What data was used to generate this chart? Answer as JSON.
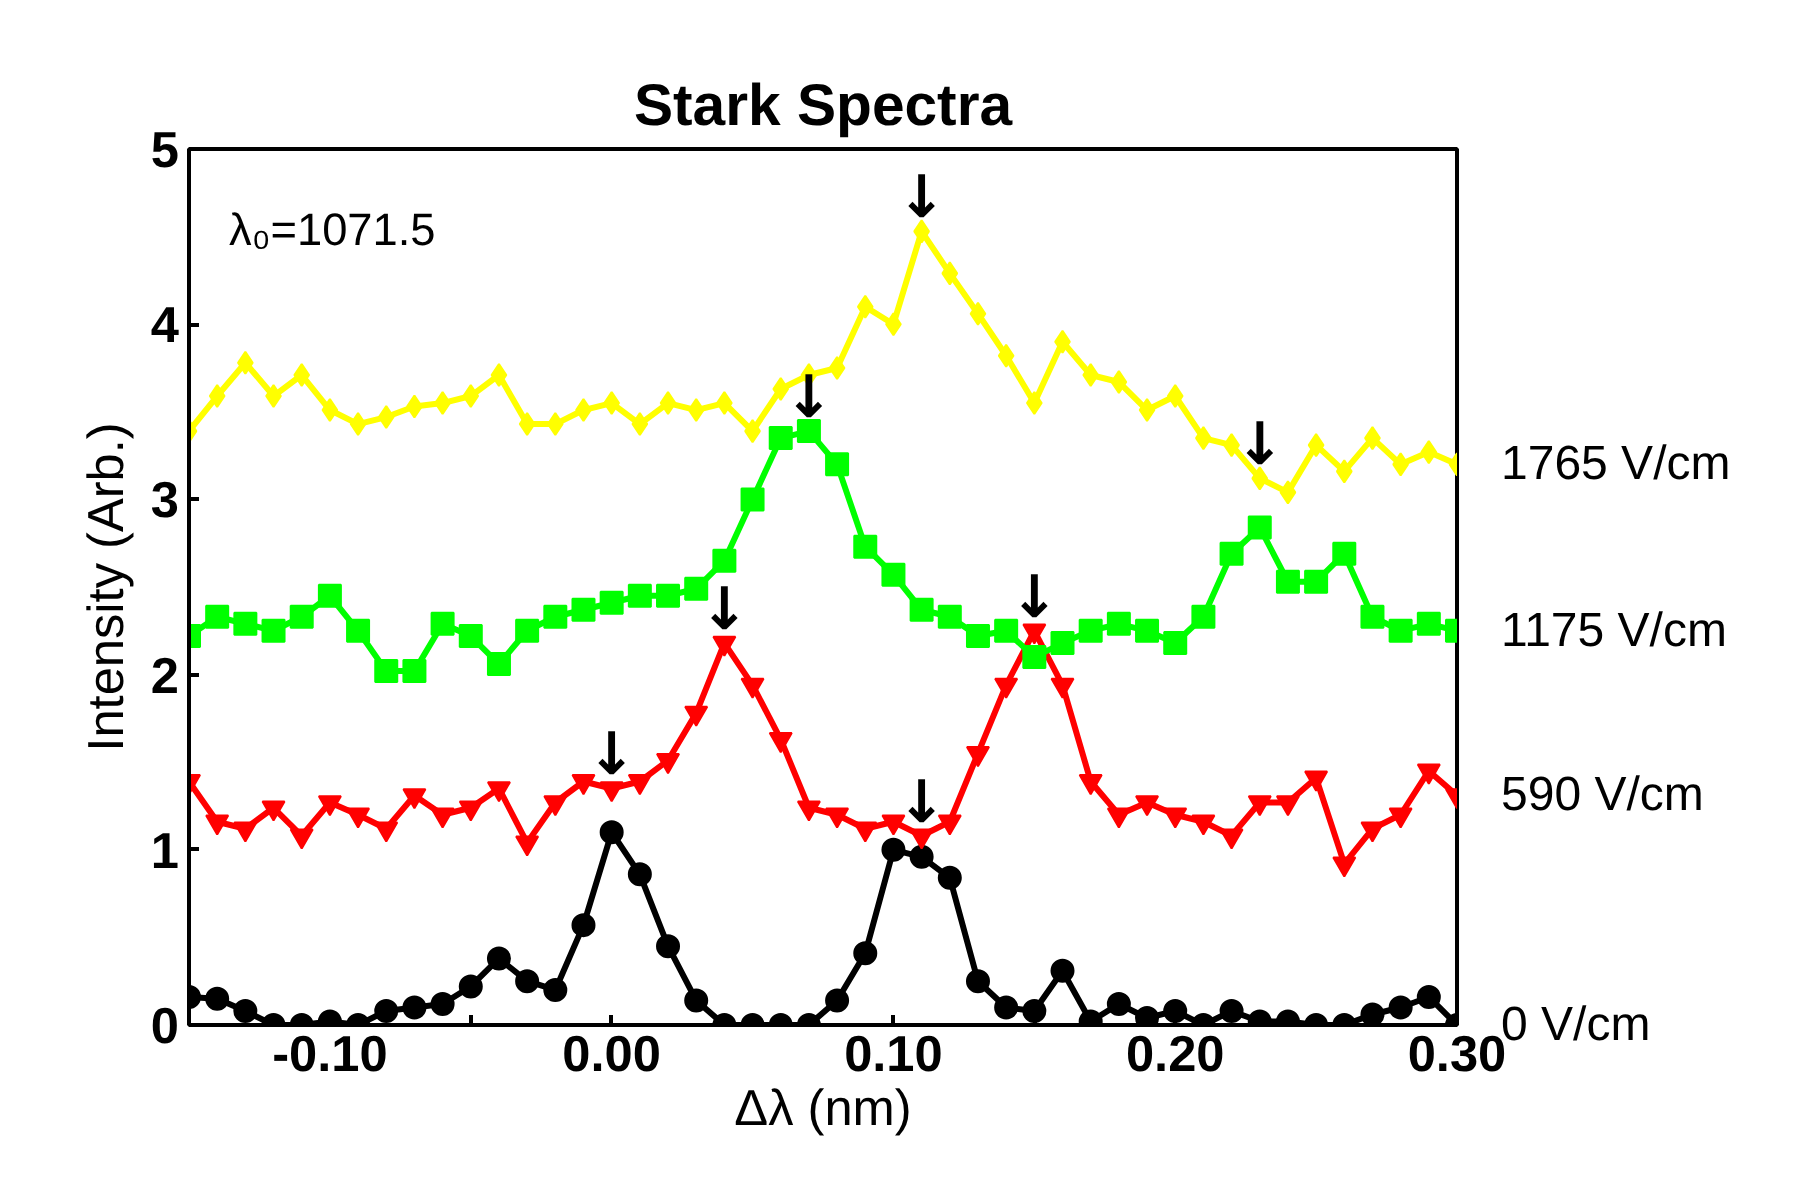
{
  "chart_data": {
    "type": "line",
    "title": "Stark Spectra",
    "xlabel": "Δλ (nm)",
    "ylabel": "Intensity (Arb.)",
    "x": [
      -0.15,
      -0.14,
      -0.13,
      -0.12,
      -0.11,
      -0.1,
      -0.09,
      -0.08,
      -0.07,
      -0.06,
      -0.05,
      -0.04,
      -0.03,
      -0.02,
      -0.01,
      0.0,
      0.01,
      0.02,
      0.03,
      0.04,
      0.05,
      0.06,
      0.07,
      0.08,
      0.09,
      0.1,
      0.11,
      0.12,
      0.13,
      0.14,
      0.15,
      0.16,
      0.17,
      0.18,
      0.19,
      0.2,
      0.21,
      0.22,
      0.23,
      0.24,
      0.25,
      0.26,
      0.27,
      0.28,
      0.29,
      0.3
    ],
    "series": [
      {
        "name": "0 V/cm",
        "color": "#000000",
        "marker": "circle",
        "values": [
          0.16,
          0.15,
          0.08,
          0.0,
          0.0,
          0.02,
          0.0,
          0.08,
          0.1,
          0.12,
          0.22,
          0.38,
          0.25,
          0.2,
          0.57,
          1.1,
          0.86,
          0.45,
          0.14,
          0.0,
          0.0,
          0.0,
          0.0,
          0.14,
          0.41,
          1.0,
          0.96,
          0.84,
          0.25,
          0.1,
          0.08,
          0.31,
          0.02,
          0.12,
          0.04,
          0.08,
          0.0,
          0.08,
          0.02,
          0.02,
          0.0,
          0.0,
          0.06,
          0.1,
          0.16,
          0.0
        ]
      },
      {
        "name": "590 V/cm",
        "color": "#ff0000",
        "marker": "triangle",
        "values": [
          1.39,
          1.16,
          1.12,
          1.24,
          1.08,
          1.27,
          1.2,
          1.12,
          1.31,
          1.2,
          1.24,
          1.35,
          1.04,
          1.27,
          1.39,
          1.35,
          1.39,
          1.51,
          1.78,
          2.18,
          1.94,
          1.63,
          1.24,
          1.2,
          1.12,
          1.16,
          1.08,
          1.16,
          1.55,
          1.94,
          2.25,
          1.94,
          1.39,
          1.2,
          1.27,
          1.2,
          1.16,
          1.08,
          1.27,
          1.27,
          1.41,
          0.92,
          1.12,
          1.2,
          1.45,
          1.31
        ]
      },
      {
        "name": "1175 V/cm",
        "color": "#00ff00",
        "marker": "square",
        "values": [
          2.22,
          2.33,
          2.29,
          2.25,
          2.33,
          2.45,
          2.25,
          2.02,
          2.02,
          2.29,
          2.22,
          2.06,
          2.25,
          2.33,
          2.37,
          2.41,
          2.45,
          2.45,
          2.49,
          2.65,
          3.0,
          3.35,
          3.39,
          3.2,
          2.73,
          2.57,
          2.37,
          2.33,
          2.22,
          2.25,
          2.1,
          2.18,
          2.25,
          2.29,
          2.25,
          2.18,
          2.33,
          2.69,
          2.84,
          2.53,
          2.53,
          2.69,
          2.33,
          2.25,
          2.29,
          2.25
        ]
      },
      {
        "name": "1765 V/cm",
        "color": "#ffff00",
        "marker": "diamond",
        "values": [
          3.39,
          3.59,
          3.78,
          3.59,
          3.71,
          3.51,
          3.43,
          3.47,
          3.53,
          3.55,
          3.59,
          3.71,
          3.43,
          3.43,
          3.51,
          3.55,
          3.43,
          3.55,
          3.51,
          3.55,
          3.39,
          3.63,
          3.71,
          3.75,
          4.1,
          4.0,
          4.53,
          4.29,
          4.06,
          3.82,
          3.55,
          3.9,
          3.71,
          3.67,
          3.51,
          3.59,
          3.35,
          3.31,
          3.12,
          3.04,
          3.31,
          3.16,
          3.35,
          3.2,
          3.27,
          3.2
        ]
      }
    ],
    "xlim": [
      -0.15,
      0.3
    ],
    "xticks": [
      {
        "value": -0.15,
        "label": null
      },
      {
        "value": -0.1,
        "label": "-0.10"
      },
      {
        "value": -0.05,
        "label": null
      },
      {
        "value": 0.0,
        "label": "0.00"
      },
      {
        "value": 0.05,
        "label": null
      },
      {
        "value": 0.1,
        "label": "0.10"
      },
      {
        "value": 0.15,
        "label": null
      },
      {
        "value": 0.2,
        "label": "0.20"
      },
      {
        "value": 0.25,
        "label": null
      },
      {
        "value": 0.3,
        "label": "0.30"
      }
    ],
    "ylim": [
      0,
      5
    ],
    "yticks": [
      0,
      1,
      2,
      3,
      4,
      5
    ],
    "grid": false,
    "legend": "right",
    "annotations": [
      "λ₀=1071.5",
      {
        "text": "↓",
        "x": 0.0,
        "y": 1.35
      },
      {
        "text": "↓",
        "x": 0.11,
        "y": 1.08
      },
      {
        "text": "↓",
        "x": 0.04,
        "y": 2.18
      },
      {
        "text": "↓",
        "x": 0.15,
        "y": 2.25
      },
      {
        "text": "↓",
        "x": 0.07,
        "y": 3.39
      },
      {
        "text": "↓",
        "x": 0.11,
        "y": 4.53
      },
      {
        "text": "↓",
        "x": 0.23,
        "y": 3.12
      }
    ]
  }
}
